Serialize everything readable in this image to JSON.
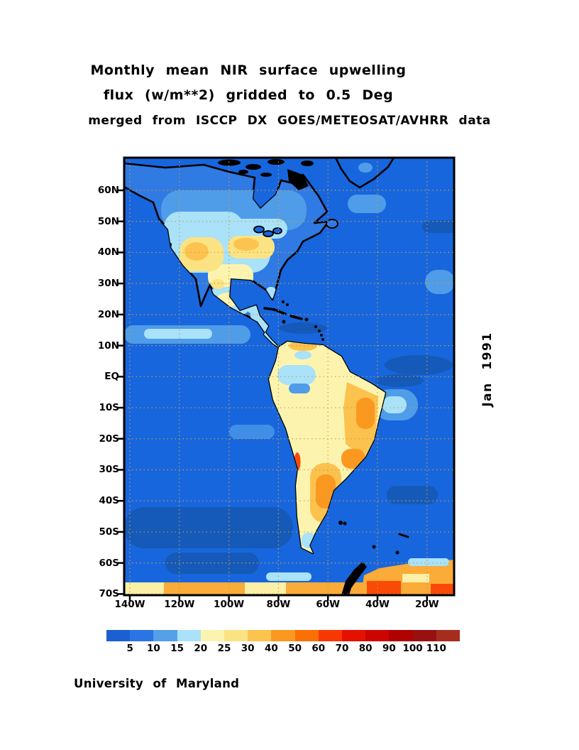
{
  "title": {
    "line1": "Monthly mean NIR surface upwelling",
    "line2": "flux (w/m**2) gridded to 0.5 Deg",
    "line3": "merged from ISCCP DX GOES/METEOSAT/AVHRR data"
  },
  "date_label": "Jan 1991",
  "credit": "University of Maryland",
  "chart_data": {
    "type": "heatmap",
    "title": "Monthly mean NIR surface upwelling flux (w/m**2) gridded to 0.5 Deg",
    "subtitle": "merged from ISCCP DX GOES/METEOSAT/AVHRR data",
    "time": "Jan 1991",
    "units": "w/m**2",
    "region": "Americas, approx 142W-9W longitude, 70N-70S latitude",
    "grid": true,
    "lat_ticks": [
      "60N",
      "50N",
      "40N",
      "30N",
      "20N",
      "10N",
      "EQ",
      "10S",
      "20S",
      "30S",
      "40S",
      "50S",
      "60S",
      "70S"
    ],
    "lon_ticks": [
      "140W",
      "120W",
      "100W",
      "80W",
      "60W",
      "40W",
      "20W"
    ],
    "colorbar": {
      "tick_labels": [
        "5",
        "10",
        "15",
        "20",
        "25",
        "30",
        "40",
        "50",
        "60",
        "70",
        "80",
        "90",
        "100",
        "110"
      ],
      "colors": [
        "#1c5fd2",
        "#2b74e4",
        "#55a0e8",
        "#a9e2f9",
        "#fcf4ae",
        "#fbe383",
        "#fcc44f",
        "#fb9820",
        "#fb7005",
        "#f93705",
        "#e51000",
        "#cd0500",
        "#b00000",
        "#961110",
        "#a62d1e"
      ]
    },
    "map_colors": {
      "ocean": "#1766dd",
      "ocean_dark": "#155ab8",
      "ocean_light": "#4f9ce8",
      "ice_cyan": "#a9e2f9",
      "land_base_blue": "#2f7ae3",
      "coastline": "#000000",
      "gridline": "#cf9c4a"
    },
    "readings": [
      {
        "region": "Open Pacific and Atlantic ocean",
        "value_range_w_m2": "5-10"
      },
      {
        "region": "Canada and eastern North America",
        "value_range_w_m2": "5-20"
      },
      {
        "region": "Western / central United States (Rockies, Midwest)",
        "value_range_w_m2": "20-40"
      },
      {
        "region": "Mexico and Central America",
        "value_range_w_m2": "15-25"
      },
      {
        "region": "Amazon basin interior",
        "value_range_w_m2": "15-25"
      },
      {
        "region": "Eastern Brazil and Argentina",
        "value_range_w_m2": "25-50"
      },
      {
        "region": "Chilean coastal Andes spot",
        "value_range_w_m2": "50-70"
      },
      {
        "region": "Antarctic coastal band (bottom edge)",
        "value_range_w_m2": "25-80"
      }
    ]
  }
}
